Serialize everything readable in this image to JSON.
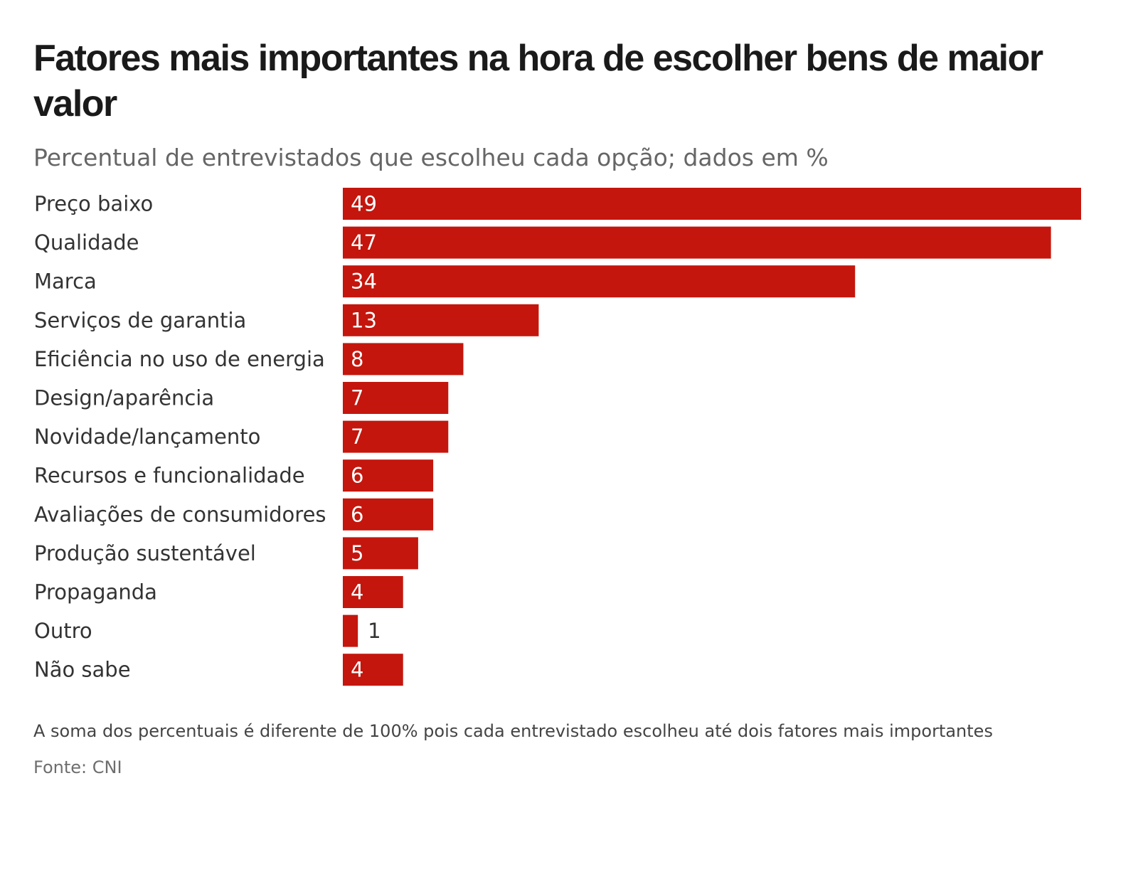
{
  "chart_data": {
    "type": "bar",
    "orientation": "horizontal",
    "title": "Fatores mais importantes na hora de escolher bens de maior valor",
    "subtitle": "Percentual de entrevistados que escolheu cada opção; dados em %",
    "categories": [
      "Preço baixo",
      "Qualidade",
      "Marca",
      "Serviços de garantia",
      "Eficiência no uso de energia",
      "Design/aparência",
      "Novidade/lançamento",
      "Recursos e funcionalidade",
      "Avaliações de consumidores",
      "Produção sustentável",
      "Propaganda",
      "Outro",
      "Não sabe"
    ],
    "values": [
      49,
      47,
      34,
      13,
      8,
      7,
      7,
      6,
      6,
      5,
      4,
      1,
      4
    ],
    "xlim": [
      0,
      49
    ],
    "xlabel": "",
    "ylabel": "",
    "grid": false,
    "data_labels": true,
    "bar_color": "#c4160d",
    "label_inside_color": "#ffffff",
    "label_outside_color": "#333333"
  },
  "footer": {
    "note": "A soma dos percentuais é diferente de 100% pois cada entrevistado escolheu até dois fatores mais importantes",
    "source": "Fonte: CNI"
  }
}
